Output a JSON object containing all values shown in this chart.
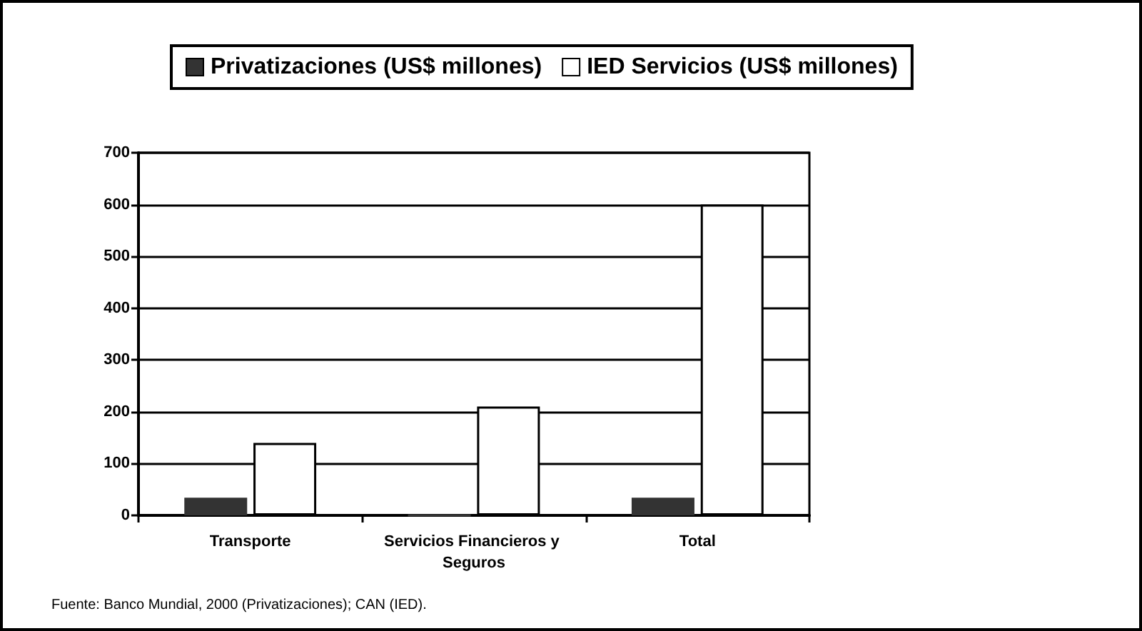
{
  "chart_data": {
    "type": "bar",
    "categories": [
      "Transporte",
      "Servicios Financieros y Seguros",
      "Total"
    ],
    "series": [
      {
        "name": "Privatizaciones (US$ millones)",
        "color": "#333333",
        "values": [
          34,
          0,
          34
        ]
      },
      {
        "name": "IED Servicios (US$ millones)",
        "color": "#ffffff",
        "values": [
          140,
          210,
          600
        ]
      }
    ],
    "ylim": [
      0,
      700
    ],
    "yticks": [
      0,
      100,
      200,
      300,
      400,
      500,
      600,
      700
    ],
    "grid": "y",
    "legend": "top",
    "annotations": [
      "Fuente: Banco Mundial, 2000 (Privatizaciones); CAN (IED)."
    ]
  }
}
